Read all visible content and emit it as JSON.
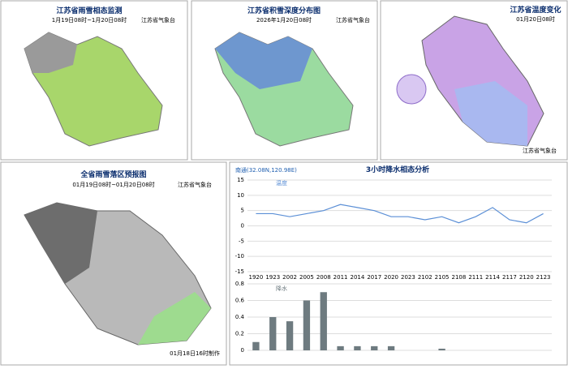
{
  "panels": [
    {
      "title": "江苏省雨雪相态监测",
      "subtitle": "1月19日08时~1月20日08时",
      "org": "江苏省气象台"
    },
    {
      "title": "江苏省积雪深度分布图",
      "subtitle": "2026年1月20日08时",
      "org": "江苏省气象台"
    },
    {
      "title": "江苏省温度变化",
      "subtitle": "01月20日08时",
      "org": "江苏省气象台"
    },
    {
      "title": "全省雨雪落区预报图",
      "subtitle": "01月19日08时~01月20日08时",
      "org": "江苏省气象台",
      "footer": "01月18日16时制作"
    }
  ],
  "chart": {
    "type": "bar",
    "station": "南通(32.08N,120.98E)",
    "title": "3小时降水相态分析",
    "categories": [
      "1920",
      "1923",
      "2002",
      "2005",
      "2008",
      "2011",
      "2014",
      "2017",
      "2020",
      "2023",
      "2102",
      "2105",
      "2108",
      "2111",
      "2114",
      "2117",
      "2120",
      "2123"
    ],
    "temperature": {
      "name": "温度",
      "color": "#5b8fd6",
      "values": [
        4,
        4,
        3,
        4,
        5,
        7,
        6,
        5,
        3,
        3,
        2,
        3,
        1,
        3,
        6,
        2,
        1,
        4
      ]
    },
    "ylim": [
      -15,
      15
    ],
    "yticks": [
      -15,
      -10,
      -5,
      0,
      5,
      10,
      15
    ],
    "precip": {
      "name": "降水",
      "color": "#6e7b80",
      "values": [
        0.1,
        0.4,
        0.35,
        0.6,
        0.7,
        0.05,
        0.05,
        0.05,
        0.05,
        0,
        0,
        0.02,
        0,
        0,
        0,
        0,
        0,
        0
      ]
    },
    "ylim2": [
      0,
      0.8
    ],
    "yticks2": [
      0,
      0.2,
      0.4,
      0.6,
      0.8
    ]
  }
}
